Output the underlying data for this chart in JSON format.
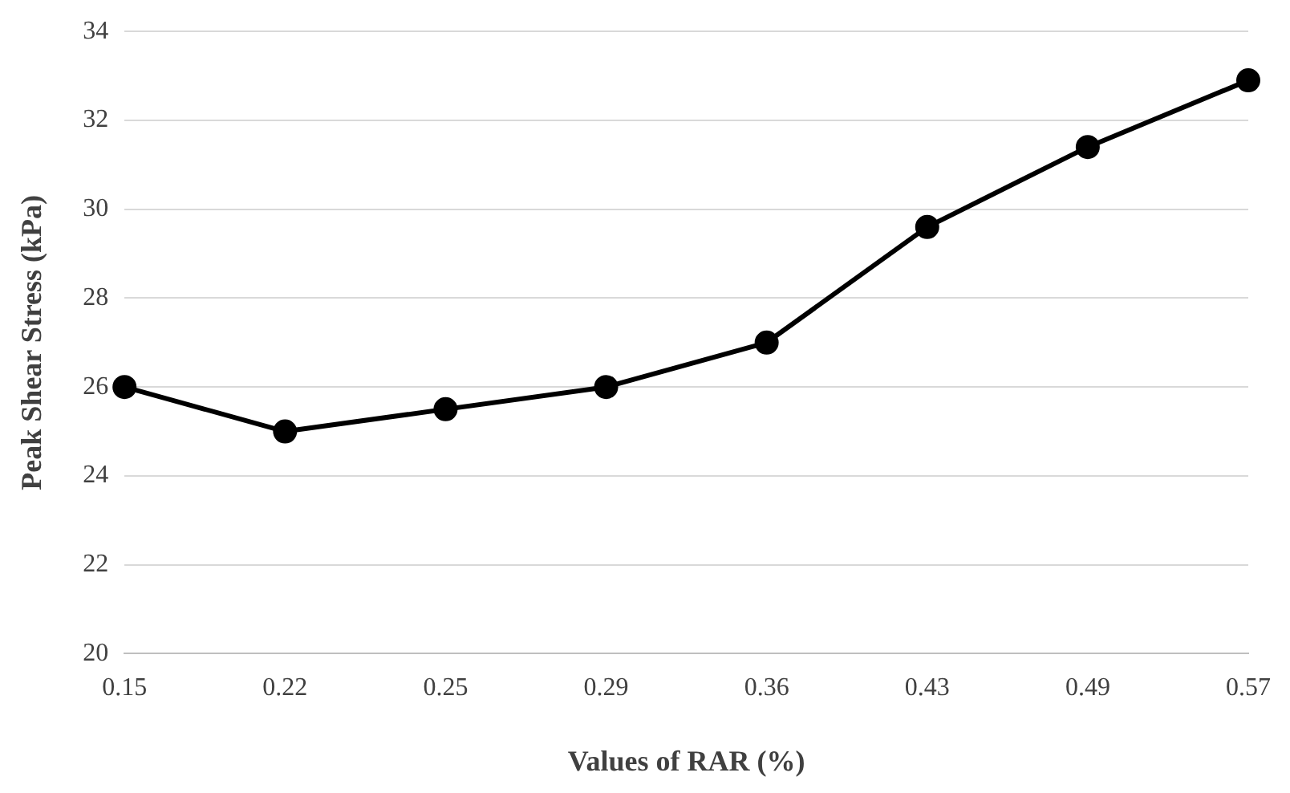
{
  "chart_data": {
    "type": "line",
    "xlabel": "Values of RAR (%)",
    "ylabel": "Peak Shear Stress (kPa)",
    "categories": [
      "0.15",
      "0.22",
      "0.25",
      "0.29",
      "0.36",
      "0.43",
      "0.49",
      "0.57"
    ],
    "series": [
      {
        "color": "#000000",
        "values": [
          26,
          25,
          25.5,
          26,
          27,
          29.6,
          31.4,
          32.9
        ]
      }
    ],
    "ylim": [
      20,
      34
    ],
    "yticks": [
      20,
      22,
      24,
      26,
      28,
      30,
      32,
      34
    ],
    "grid": "y",
    "legend": false,
    "marker": "circle",
    "line_style": "solid"
  }
}
